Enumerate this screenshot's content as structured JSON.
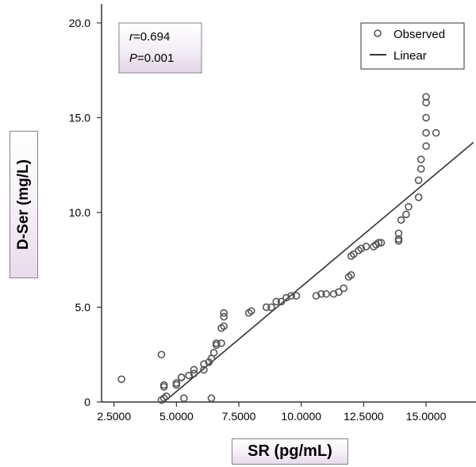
{
  "chart_data": {
    "type": "scatter",
    "xlabel": "SR (pg/mL)",
    "ylabel": "D-Ser (mg/L)",
    "xlim": [
      2.0,
      17.0
    ],
    "ylim": [
      0.0,
      21.0
    ],
    "x_ticks": [
      "2.5000",
      "5.0000",
      "7.5000",
      "10.0000",
      "12.5000",
      "15.0000"
    ],
    "x_tick_values": [
      2.5,
      5.0,
      7.5,
      10.0,
      12.5,
      15.0
    ],
    "y_ticks": [
      "0",
      "5.0",
      "10.0",
      "15.0",
      "20.0"
    ],
    "y_tick_values": [
      0,
      5,
      10,
      15,
      20
    ],
    "grid": false,
    "legend_position": "top-right",
    "stats": {
      "r_label": "r",
      "r_value": "=0.694",
      "p_label": "P",
      "p_value": "=0.001"
    },
    "series": [
      {
        "name": "Observed",
        "marker": "open-circle",
        "color": "#555555",
        "points": [
          [
            2.8,
            1.2
          ],
          [
            4.4,
            2.5
          ],
          [
            4.5,
            0.8
          ],
          [
            4.5,
            0.9
          ],
          [
            4.4,
            0.1
          ],
          [
            4.5,
            0.2
          ],
          [
            4.6,
            0.3
          ],
          [
            5.0,
            0.9
          ],
          [
            5.0,
            1.0
          ],
          [
            5.2,
            1.3
          ],
          [
            5.2,
            1.3
          ],
          [
            5.5,
            1.4
          ],
          [
            5.3,
            0.2
          ],
          [
            5.7,
            1.5
          ],
          [
            5.7,
            1.7
          ],
          [
            6.1,
            1.7
          ],
          [
            6.1,
            2.0
          ],
          [
            6.3,
            2.1
          ],
          [
            6.4,
            2.3
          ],
          [
            6.5,
            2.6
          ],
          [
            6.6,
            3.0
          ],
          [
            6.6,
            3.1
          ],
          [
            6.4,
            0.2
          ],
          [
            6.8,
            3.1
          ],
          [
            6.8,
            3.9
          ],
          [
            6.9,
            4.0
          ],
          [
            6.9,
            4.5
          ],
          [
            6.9,
            4.7
          ],
          [
            7.9,
            4.7
          ],
          [
            8.0,
            4.8
          ],
          [
            8.6,
            5.0
          ],
          [
            8.8,
            5.0
          ],
          [
            9.0,
            5.3
          ],
          [
            9.2,
            5.3
          ],
          [
            9.4,
            5.5
          ],
          [
            9.6,
            5.6
          ],
          [
            9.8,
            5.6
          ],
          [
            10.6,
            5.6
          ],
          [
            10.8,
            5.7
          ],
          [
            11.0,
            5.7
          ],
          [
            11.3,
            5.7
          ],
          [
            11.5,
            5.8
          ],
          [
            11.7,
            6.0
          ],
          [
            11.9,
            6.6
          ],
          [
            12.0,
            6.7
          ],
          [
            12.0,
            7.7
          ],
          [
            12.1,
            7.8
          ],
          [
            12.3,
            8.0
          ],
          [
            12.4,
            8.1
          ],
          [
            12.6,
            8.2
          ],
          [
            12.9,
            8.2
          ],
          [
            13.0,
            8.3
          ],
          [
            13.1,
            8.4
          ],
          [
            13.2,
            8.4
          ],
          [
            13.9,
            8.5
          ],
          [
            13.9,
            8.6
          ],
          [
            13.9,
            8.9
          ],
          [
            14.0,
            9.6
          ],
          [
            14.2,
            9.9
          ],
          [
            14.3,
            10.3
          ],
          [
            14.7,
            10.8
          ],
          [
            14.7,
            11.7
          ],
          [
            14.8,
            12.3
          ],
          [
            14.8,
            12.8
          ],
          [
            15.0,
            13.5
          ],
          [
            15.0,
            14.2
          ],
          [
            15.0,
            15.0
          ],
          [
            15.0,
            15.8
          ],
          [
            15.0,
            16.1
          ],
          [
            15.4,
            14.2
          ]
        ]
      },
      {
        "name": "Linear",
        "type": "line",
        "color": "#333333",
        "points": [
          [
            4.5,
            0.0
          ],
          [
            16.9,
            13.7
          ]
        ]
      }
    ]
  }
}
